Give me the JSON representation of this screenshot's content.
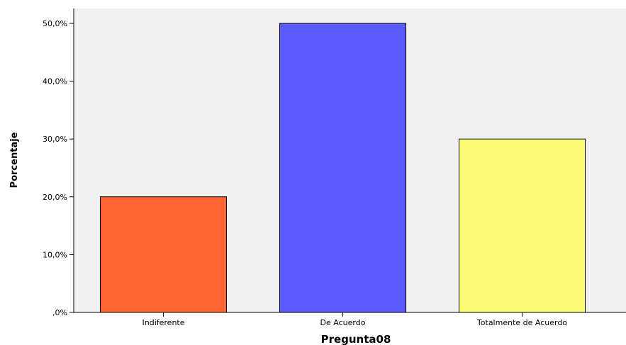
{
  "chart_data": {
    "type": "bar",
    "categories": [
      "Indiferente",
      "De Acuerdo",
      "Totalmente de Acuerdo"
    ],
    "values": [
      20,
      50,
      30
    ],
    "colors": [
      "#ff6633",
      "#5a5aff",
      "#fafa73"
    ],
    "xlabel": "Pregunta08",
    "ylabel": "Porcentaje",
    "ylim": [
      0,
      50
    ],
    "yticks": [
      0,
      10,
      20,
      30,
      40,
      50
    ],
    "ytick_labels": [
      ",0%",
      "10,0%",
      "20,0%",
      "30,0%",
      "40,0%",
      "50,0%"
    ],
    "plot_background": "#f0f0f0",
    "grid": false,
    "legend": false
  }
}
